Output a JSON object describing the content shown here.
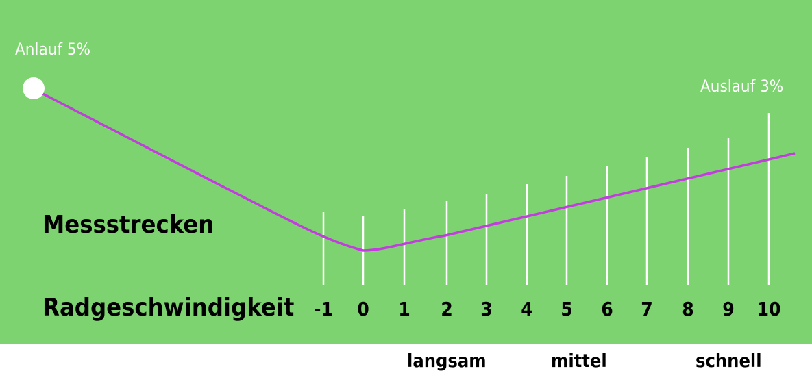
{
  "diagram": {
    "start_label": "Anlauf 5%",
    "end_label": "Auslauf 3%",
    "row1_label": "Messstrecken",
    "row2_label": "Radgeschwindigkeit",
    "ticks": [
      "-1",
      "0",
      "1",
      "2",
      "3",
      "4",
      "5",
      "6",
      "7",
      "8",
      "9",
      "10"
    ],
    "categories": [
      "langsam",
      "mittel",
      "schnell"
    ]
  },
  "colors": {
    "background": "#7dd36f",
    "curve": "#c43be0",
    "markers": "#ffffff",
    "text": "#000000"
  }
}
